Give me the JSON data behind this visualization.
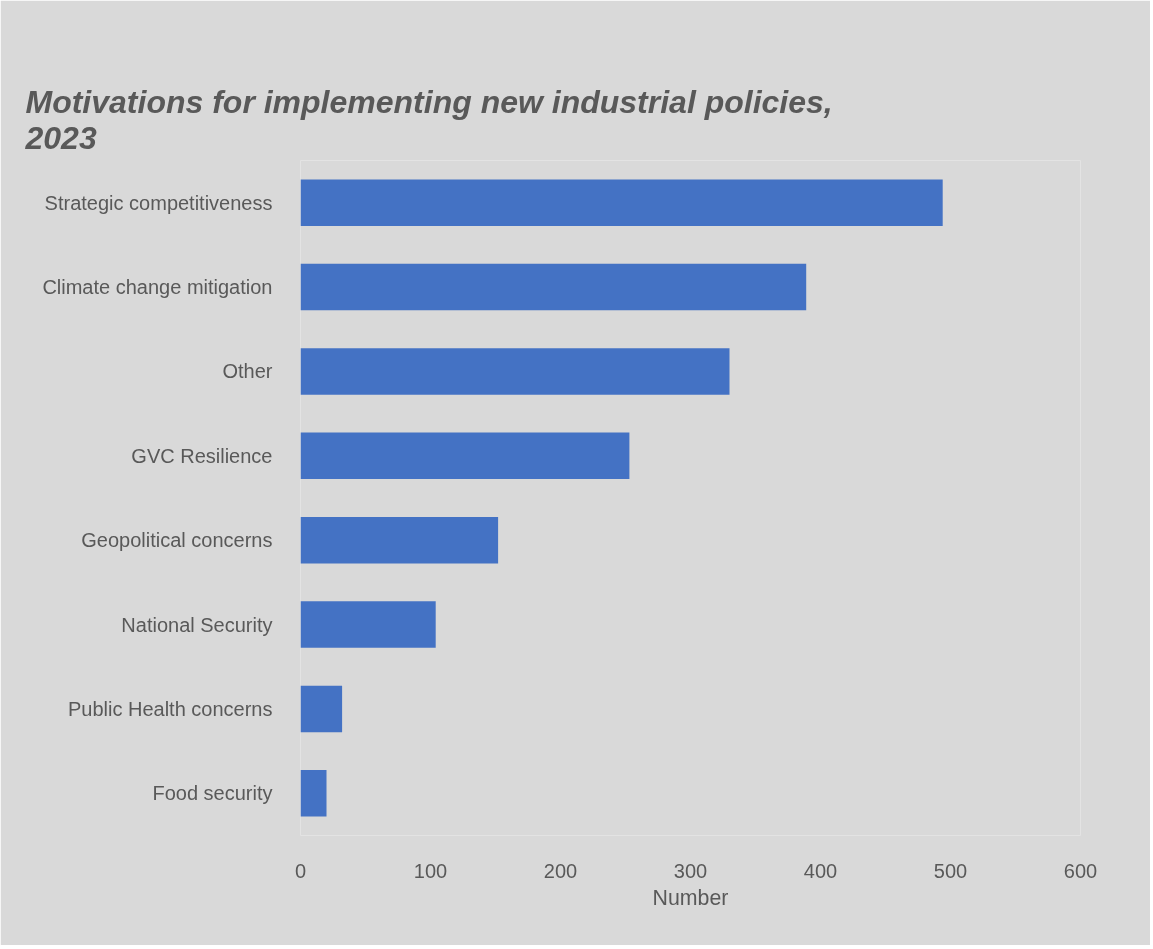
{
  "chart_data": {
    "type": "bar",
    "orientation": "horizontal",
    "title": "Motivations for implementing new industrial policies,\n2023",
    "xlabel": "Number",
    "categories": [
      "Strategic competitiveness",
      "Climate change mitigation",
      "Other",
      "GVC Resilience",
      "Geopolitical concerns",
      "National Security",
      "Public Health concerns",
      "Food security"
    ],
    "values": [
      494,
      389,
      330,
      253,
      152,
      104,
      32,
      20
    ],
    "color": "#4472c4",
    "xlim": [
      0,
      600
    ],
    "xticks": [
      0,
      100,
      200,
      300,
      400,
      500,
      600
    ],
    "grid": false
  }
}
